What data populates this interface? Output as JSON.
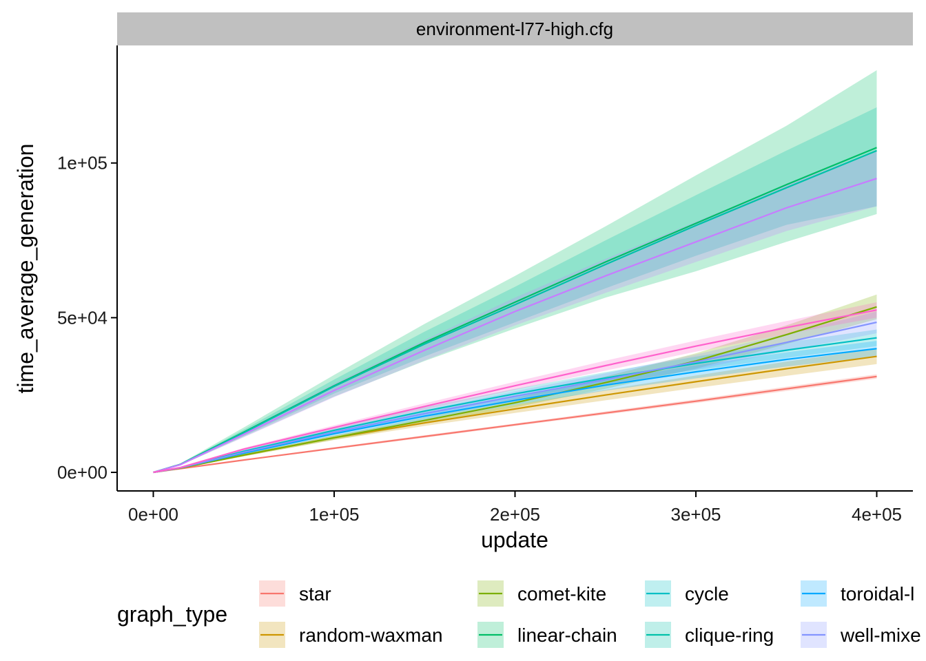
{
  "chart_data": {
    "type": "line",
    "facet_label": "environment-l77-high.cfg",
    "xlabel": "update",
    "ylabel": "time_average_generation",
    "xlim": [
      -20000,
      420000
    ],
    "ylim": [
      -6000,
      138000
    ],
    "x_ticks": [
      0,
      100000,
      200000,
      300000,
      400000
    ],
    "x_tick_labels": [
      "0e+00",
      "1e+05",
      "2e+05",
      "3e+05",
      "4e+05"
    ],
    "y_ticks": [
      0,
      50000,
      100000
    ],
    "y_tick_labels": [
      "0e+00",
      "5e+04",
      "1e+05"
    ],
    "grid": false,
    "legend": {
      "title": "graph_type",
      "position": "bottom",
      "columns": 4
    },
    "x": [
      0,
      15000,
      50000,
      100000,
      150000,
      200000,
      250000,
      300000,
      350000,
      400000
    ],
    "series": [
      {
        "name": "star",
        "color": "#F8766D",
        "values": [
          0,
          1200,
          4000,
          7800,
          11600,
          15400,
          19200,
          23000,
          27000,
          31000
        ],
        "lower": [
          0,
          1150,
          3800,
          7500,
          11200,
          15000,
          18700,
          22400,
          26300,
          30300
        ],
        "upper": [
          0,
          1250,
          4200,
          8100,
          12000,
          15800,
          19700,
          23600,
          27700,
          31700
        ]
      },
      {
        "name": "random-waxman",
        "color": "#CD9600",
        "values": [
          0,
          1400,
          5600,
          11200,
          16000,
          20500,
          25000,
          29300,
          33500,
          37500
        ],
        "lower": [
          0,
          1300,
          5200,
          10500,
          15000,
          19200,
          23300,
          27300,
          31200,
          35000
        ],
        "upper": [
          0,
          1500,
          6000,
          11900,
          17000,
          21800,
          26700,
          31300,
          35800,
          40000
        ]
      },
      {
        "name": "comet-kite",
        "color": "#7CAE00",
        "values": [
          0,
          1400,
          5600,
          11200,
          16800,
          22500,
          29000,
          36000,
          44500,
          53500
        ],
        "lower": [
          0,
          1300,
          5200,
          10500,
          15800,
          21000,
          27000,
          33500,
          41500,
          49500
        ],
        "upper": [
          0,
          1500,
          6000,
          11900,
          17800,
          24000,
          31000,
          38500,
          47500,
          57500
        ]
      },
      {
        "name": "linear-chain",
        "color": "#00BE67",
        "values": [
          0,
          2600,
          13000,
          28000,
          42000,
          55000,
          68000,
          80500,
          93000,
          105000
        ],
        "lower": [
          0,
          2300,
          11500,
          24500,
          36000,
          46500,
          56500,
          65000,
          74500,
          83500
        ],
        "upper": [
          0,
          2900,
          14500,
          31500,
          48000,
          63500,
          79500,
          96000,
          112000,
          130000
        ]
      },
      {
        "name": "cycle",
        "color": "#00BFC4",
        "values": [
          0,
          1500,
          6800,
          13600,
          19800,
          25400,
          30500,
          35200,
          39500,
          43500
        ],
        "lower": [
          0,
          1400,
          6300,
          12700,
          18500,
          23800,
          28600,
          33000,
          37000,
          40800
        ],
        "upper": [
          0,
          1600,
          7300,
          14500,
          21100,
          27000,
          32400,
          37400,
          42000,
          46200
        ]
      },
      {
        "name": "clique-ring",
        "color": "#00C1A9",
        "values": [
          0,
          2600,
          12800,
          27800,
          41500,
          54200,
          67200,
          79800,
          92000,
          104000
        ],
        "lower": [
          0,
          2400,
          11800,
          25500,
          37500,
          48500,
          59500,
          70000,
          80000,
          86000
        ],
        "upper": [
          0,
          2800,
          13800,
          30000,
          45500,
          60000,
          75000,
          89600,
          104000,
          118000
        ]
      },
      {
        "name": "toroidal-lattice",
        "color": "#00A9FF",
        "values": [
          0,
          1500,
          6200,
          12500,
          18200,
          23300,
          28200,
          32500,
          36500,
          40000
        ],
        "lower": [
          0,
          1400,
          5800,
          11700,
          17000,
          21800,
          26400,
          30400,
          34200,
          37500
        ],
        "upper": [
          0,
          1600,
          6600,
          13300,
          19400,
          24800,
          30000,
          34600,
          38800,
          42500
        ]
      },
      {
        "name": "well-mixed",
        "color": "#8494FF",
        "values": [
          0,
          1500,
          6500,
          13000,
          19000,
          24600,
          30000,
          35700,
          42000,
          48500
        ],
        "lower": [
          0,
          1400,
          6100,
          12200,
          17800,
          23000,
          28000,
          33300,
          39200,
          45000
        ],
        "upper": [
          0,
          1600,
          6900,
          13800,
          20200,
          26200,
          32000,
          38100,
          44800,
          52000
        ]
      },
      {
        "name": "",
        "color": "#C77CFF",
        "values": [
          0,
          2500,
          12300,
          26500,
          39500,
          52000,
          63500,
          74500,
          85500,
          95000
        ],
        "lower": [
          0,
          2300,
          11300,
          24300,
          36200,
          47500,
          58000,
          68000,
          78000,
          86000
        ],
        "upper": [
          0,
          2700,
          13300,
          28700,
          42800,
          56500,
          69000,
          81000,
          93000,
          104000
        ]
      },
      {
        "name": "",
        "color": "#FF61CC",
        "values": [
          0,
          1600,
          7500,
          14500,
          21300,
          28000,
          34500,
          40800,
          46800,
          52500
        ],
        "lower": [
          0,
          1500,
          7100,
          13800,
          20300,
          26700,
          32900,
          39000,
          44700,
          50000
        ],
        "upper": [
          0,
          1700,
          7900,
          15200,
          22300,
          29300,
          36100,
          42600,
          48900,
          55000
        ]
      }
    ],
    "legend_entries": [
      "star",
      "random-waxman",
      "comet-kite",
      "linear-chain",
      "cycle",
      "clique-ring",
      "toroidal-l",
      "well-mixe"
    ]
  }
}
